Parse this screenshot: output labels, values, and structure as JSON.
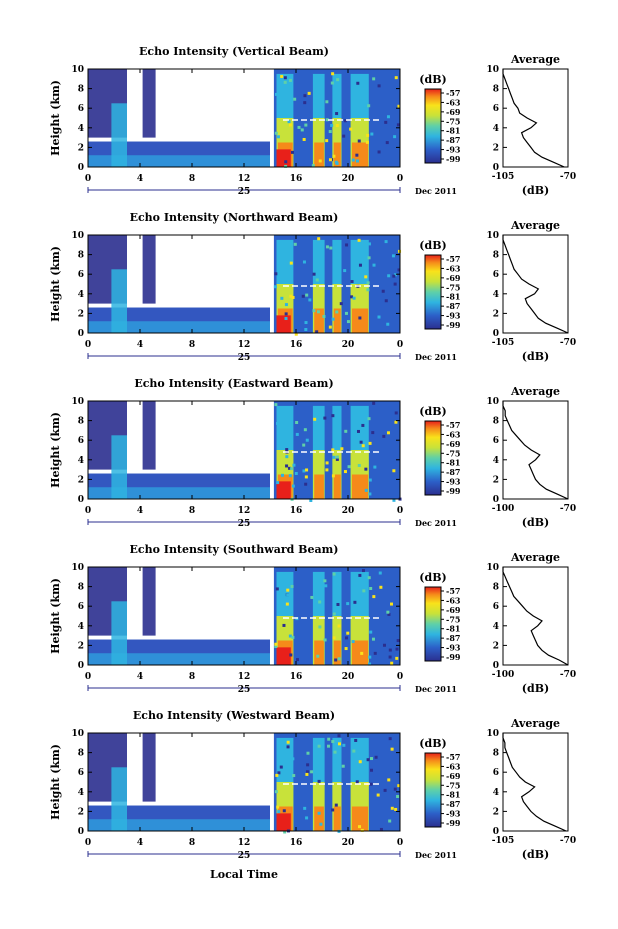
{
  "shared": {
    "xlabel": "Local Time",
    "ylabel": "Height (km)",
    "x_ticks": [
      "0",
      "4",
      "8",
      "12",
      "16",
      "20",
      "0"
    ],
    "date_day": "25",
    "date_suffix": "Dec 2011",
    "colorbar_unit": "(dB)",
    "colorbar_ticks": [
      "-57",
      "-63",
      "-69",
      "-75",
      "-81",
      "-87",
      "-93",
      "-99"
    ],
    "y_ticks": [
      "0",
      "2",
      "4",
      "6",
      "8",
      "10"
    ],
    "avg_title": "Average",
    "avg_xlabel": "(dB)",
    "colors": {
      "low": "#2b2f8f",
      "mid": "#2fb4e0",
      "high": "#f9e21a",
      "peak": "#e8201a"
    }
  },
  "chart_data": [
    {
      "type": "heatmap",
      "title": "Echo Intensity (Vertical Beam)",
      "x_range": [
        0,
        24
      ],
      "y_range": [
        0,
        10
      ],
      "avg_xticks": [
        "-105",
        "-70"
      ],
      "avg_profile": [
        [
          -72,
          0
        ],
        [
          -78,
          0.5
        ],
        [
          -84,
          1
        ],
        [
          -88,
          1.5
        ],
        [
          -90,
          2
        ],
        [
          -92,
          2.5
        ],
        [
          -94,
          3
        ],
        [
          -95,
          3.5
        ],
        [
          -90,
          4
        ],
        [
          -87,
          4.5
        ],
        [
          -92,
          5
        ],
        [
          -96,
          5.5
        ],
        [
          -97,
          6
        ],
        [
          -99,
          6.5
        ],
        [
          -100,
          7
        ],
        [
          -101,
          7.5
        ],
        [
          -102,
          8
        ],
        [
          -103,
          8.5
        ],
        [
          -104,
          9
        ],
        [
          -105,
          9.5
        ],
        [
          -105,
          10
        ]
      ]
    },
    {
      "type": "heatmap",
      "title": "Echo Intensity (Northward Beam)",
      "x_range": [
        0,
        24
      ],
      "y_range": [
        0,
        10
      ],
      "avg_xticks": [
        "-105",
        "-70"
      ],
      "avg_profile": [
        [
          -70,
          0
        ],
        [
          -76,
          0.5
        ],
        [
          -82,
          1
        ],
        [
          -86,
          1.5
        ],
        [
          -88,
          2
        ],
        [
          -90,
          2.5
        ],
        [
          -92,
          3
        ],
        [
          -93,
          3.5
        ],
        [
          -88,
          4
        ],
        [
          -86,
          4.5
        ],
        [
          -91,
          5
        ],
        [
          -95,
          5.5
        ],
        [
          -97,
          6
        ],
        [
          -99,
          6.5
        ],
        [
          -100,
          7
        ],
        [
          -101,
          7.5
        ],
        [
          -102,
          8
        ],
        [
          -103,
          8.5
        ],
        [
          -104,
          9
        ],
        [
          -105,
          9.5
        ],
        [
          -105,
          10
        ]
      ]
    },
    {
      "type": "heatmap",
      "title": "Echo Intensity (Eastward Beam)",
      "x_range": [
        0,
        24
      ],
      "y_range": [
        0,
        10
      ],
      "avg_xticks": [
        "-100",
        "-70"
      ],
      "avg_profile": [
        [
          -70,
          0
        ],
        [
          -75,
          0.5
        ],
        [
          -80,
          1
        ],
        [
          -83,
          1.5
        ],
        [
          -85,
          2
        ],
        [
          -86,
          2.5
        ],
        [
          -87,
          3
        ],
        [
          -88,
          3.5
        ],
        [
          -85,
          4
        ],
        [
          -83,
          4.5
        ],
        [
          -87,
          5
        ],
        [
          -90,
          5.5
        ],
        [
          -92,
          6
        ],
        [
          -94,
          6.5
        ],
        [
          -96,
          7
        ],
        [
          -97,
          7.5
        ],
        [
          -98,
          8
        ],
        [
          -99,
          8.5
        ],
        [
          -99,
          9
        ],
        [
          -100,
          9.5
        ],
        [
          -100,
          10
        ]
      ]
    },
    {
      "type": "heatmap",
      "title": "Echo Intensity (Southward Beam)",
      "x_range": [
        0,
        24
      ],
      "y_range": [
        0,
        10
      ],
      "avg_xticks": [
        "-100",
        "-70"
      ],
      "avg_profile": [
        [
          -70,
          0
        ],
        [
          -74,
          0.5
        ],
        [
          -79,
          1
        ],
        [
          -82,
          1.5
        ],
        [
          -84,
          2
        ],
        [
          -85,
          2.5
        ],
        [
          -86,
          3
        ],
        [
          -87,
          3.5
        ],
        [
          -84,
          4
        ],
        [
          -82,
          4.5
        ],
        [
          -86,
          5
        ],
        [
          -89,
          5.5
        ],
        [
          -91,
          6
        ],
        [
          -93,
          6.5
        ],
        [
          -95,
          7
        ],
        [
          -96,
          7.5
        ],
        [
          -97,
          8
        ],
        [
          -98,
          8.5
        ],
        [
          -99,
          9
        ],
        [
          -100,
          9.5
        ],
        [
          -100,
          10
        ]
      ]
    },
    {
      "type": "heatmap",
      "title": "Echo Intensity (Westward Beam)",
      "x_range": [
        0,
        24
      ],
      "y_range": [
        0,
        10
      ],
      "avg_xticks": [
        "-105",
        "-70"
      ],
      "avg_profile": [
        [
          -71,
          0
        ],
        [
          -77,
          0.5
        ],
        [
          -83,
          1
        ],
        [
          -87,
          1.5
        ],
        [
          -90,
          2
        ],
        [
          -92,
          2.5
        ],
        [
          -94,
          3
        ],
        [
          -95,
          3.5
        ],
        [
          -91,
          4
        ],
        [
          -88,
          4.5
        ],
        [
          -93,
          5
        ],
        [
          -96,
          5.5
        ],
        [
          -98,
          6
        ],
        [
          -100,
          6.5
        ],
        [
          -101,
          7
        ],
        [
          -102,
          7.5
        ],
        [
          -103,
          8
        ],
        [
          -104,
          8.5
        ],
        [
          -104,
          9
        ],
        [
          -105,
          9.5
        ],
        [
          -105,
          10
        ]
      ]
    }
  ]
}
